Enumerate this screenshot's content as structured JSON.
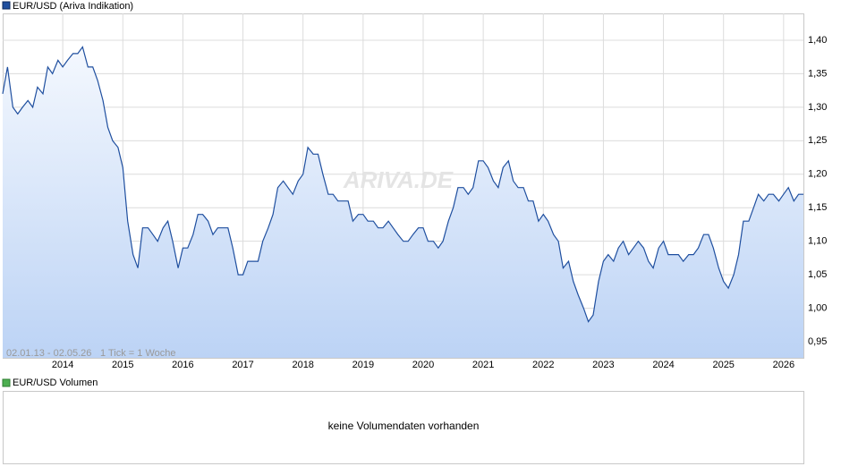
{
  "chart_data": {
    "type": "line",
    "series": [
      {
        "name": "EUR/USD (Ariva Indikation)",
        "color": "#1f4f9f",
        "values": [
          1.32,
          1.36,
          1.3,
          1.29,
          1.3,
          1.31,
          1.3,
          1.33,
          1.32,
          1.36,
          1.35,
          1.37,
          1.36,
          1.37,
          1.38,
          1.38,
          1.39,
          1.36,
          1.36,
          1.34,
          1.31,
          1.27,
          1.25,
          1.24,
          1.21,
          1.13,
          1.08,
          1.06,
          1.12,
          1.12,
          1.11,
          1.1,
          1.12,
          1.13,
          1.1,
          1.06,
          1.09,
          1.09,
          1.11,
          1.14,
          1.14,
          1.13,
          1.11,
          1.12,
          1.12,
          1.12,
          1.09,
          1.05,
          1.05,
          1.07,
          1.07,
          1.07,
          1.1,
          1.12,
          1.14,
          1.18,
          1.19,
          1.18,
          1.17,
          1.19,
          1.2,
          1.24,
          1.23,
          1.23,
          1.2,
          1.17,
          1.17,
          1.16,
          1.16,
          1.16,
          1.13,
          1.14,
          1.14,
          1.13,
          1.13,
          1.12,
          1.12,
          1.13,
          1.12,
          1.11,
          1.1,
          1.1,
          1.11,
          1.12,
          1.12,
          1.1,
          1.1,
          1.09,
          1.1,
          1.13,
          1.15,
          1.18,
          1.18,
          1.17,
          1.18,
          1.22,
          1.22,
          1.21,
          1.19,
          1.18,
          1.21,
          1.22,
          1.19,
          1.18,
          1.18,
          1.16,
          1.16,
          1.13,
          1.14,
          1.13,
          1.11,
          1.1,
          1.06,
          1.07,
          1.04,
          1.02,
          1.0,
          0.98,
          0.99,
          1.04,
          1.07,
          1.08,
          1.07,
          1.09,
          1.1,
          1.08,
          1.09,
          1.1,
          1.09,
          1.07,
          1.06,
          1.09,
          1.1,
          1.08,
          1.08,
          1.08,
          1.07,
          1.08,
          1.08,
          1.09,
          1.11,
          1.11,
          1.09,
          1.06,
          1.04,
          1.03,
          1.05,
          1.08,
          1.13,
          1.13,
          1.15,
          1.17,
          1.16,
          1.17,
          1.17,
          1.16,
          1.17,
          1.18,
          1.16,
          1.17,
          1.17
        ]
      }
    ],
    "x": [
      2013.0,
      2013.08,
      2013.17,
      2013.25,
      2013.33,
      2013.42,
      2013.5,
      2013.58,
      2013.67,
      2013.75,
      2013.83,
      2013.92,
      2014.0,
      2014.08,
      2014.17,
      2014.25,
      2014.33,
      2014.42,
      2014.5,
      2014.58,
      2014.67,
      2014.75,
      2014.83,
      2014.92,
      2015.0,
      2015.08,
      2015.17,
      2015.25,
      2015.33,
      2015.42,
      2015.5,
      2015.58,
      2015.67,
      2015.75,
      2015.83,
      2015.92,
      2016.0,
      2016.08,
      2016.17,
      2016.25,
      2016.33,
      2016.42,
      2016.5,
      2016.58,
      2016.67,
      2016.75,
      2016.83,
      2016.92,
      2017.0,
      2017.08,
      2017.17,
      2017.25,
      2017.33,
      2017.42,
      2017.5,
      2017.58,
      2017.67,
      2017.75,
      2017.83,
      2017.92,
      2018.0,
      2018.08,
      2018.17,
      2018.25,
      2018.33,
      2018.42,
      2018.5,
      2018.58,
      2018.67,
      2018.75,
      2018.83,
      2018.92,
      2019.0,
      2019.08,
      2019.17,
      2019.25,
      2019.33,
      2019.42,
      2019.5,
      2019.58,
      2019.67,
      2019.75,
      2019.83,
      2019.92,
      2020.0,
      2020.08,
      2020.17,
      2020.25,
      2020.33,
      2020.42,
      2020.5,
      2020.58,
      2020.67,
      2020.75,
      2020.83,
      2020.92,
      2021.0,
      2021.08,
      2021.17,
      2021.25,
      2021.33,
      2021.42,
      2021.5,
      2021.58,
      2021.67,
      2021.75,
      2021.83,
      2021.92,
      2022.0,
      2022.08,
      2022.17,
      2022.25,
      2022.33,
      2022.42,
      2022.5,
      2022.58,
      2022.67,
      2022.75,
      2022.83,
      2022.92,
      2023.0,
      2023.08,
      2023.17,
      2023.25,
      2023.33,
      2023.42,
      2023.5,
      2023.58,
      2023.67,
      2023.75,
      2023.83,
      2023.92,
      2024.0,
      2024.08,
      2024.17,
      2024.25,
      2024.33,
      2024.42,
      2024.5,
      2024.58,
      2024.67,
      2024.75,
      2024.83,
      2024.92,
      2025.0,
      2025.08,
      2025.17,
      2025.25,
      2025.33,
      2025.42,
      2025.5,
      2025.58,
      2025.67,
      2025.75,
      2025.83,
      2025.92,
      2026.0,
      2026.08,
      2026.17,
      2026.25,
      2026.33
    ],
    "xlim": [
      2013.0,
      2026.33
    ],
    "xticks": [
      2014,
      2015,
      2016,
      2017,
      2018,
      2019,
      2020,
      2021,
      2022,
      2023,
      2024,
      2025,
      2026
    ],
    "ylim": [
      0.926,
      1.44
    ],
    "yticks": [
      {
        "value": 0.95,
        "label": "0,95"
      },
      {
        "value": 1.0,
        "label": "1,00"
      },
      {
        "value": 1.05,
        "label": "1,05"
      },
      {
        "value": 1.1,
        "label": "1,10"
      },
      {
        "value": 1.15,
        "label": "1,15"
      },
      {
        "value": 1.2,
        "label": "1,20"
      },
      {
        "value": 1.25,
        "label": "1,25"
      },
      {
        "value": 1.3,
        "label": "1,30"
      },
      {
        "value": 1.35,
        "label": "1,35"
      },
      {
        "value": 1.4,
        "label": "1,40"
      }
    ],
    "grid": true,
    "period": "02.01.13 - 02.05.26",
    "tick_note": "1 Tick = 1 Woche",
    "watermark": "ARIVA.DE"
  },
  "volume_panel": {
    "legend": "EUR/USD Volumen",
    "color": "#4caf50",
    "message": "keine Volumendaten vorhanden"
  }
}
